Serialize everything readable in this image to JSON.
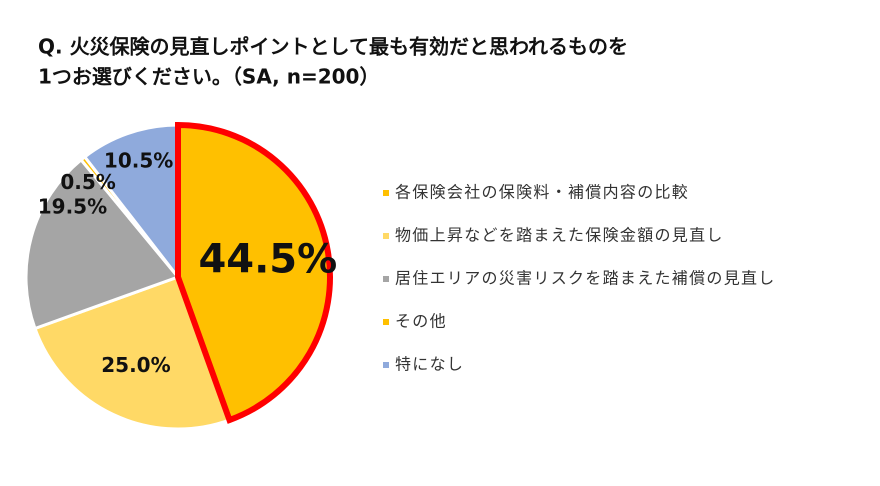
{
  "chart_data": {
    "type": "pie",
    "title": [
      "Q. 火災保険の見直しポイントとして最も有効だと思われるものを",
      "1つお選びください。（SA, n=200）"
    ],
    "categories": [
      "各保険会社の保険料・補償内容の比較",
      "物価上昇などを踏まえた保険金額の見直し",
      "居住エリアの災害リスクを踏まえた補償の見直し",
      "その他",
      "特になし"
    ],
    "values": [
      44.5,
      25.0,
      19.5,
      0.5,
      10.5
    ],
    "value_labels": [
      "44.5%",
      "25.0%",
      "19.5%",
      "0.5%",
      "10.5%"
    ],
    "colors": [
      "#ffc000",
      "#ffd966",
      "#a5a5a5",
      "#ffc000",
      "#8faadc"
    ],
    "highlight": 0,
    "highlight_color": "#ff0000",
    "legend": "right"
  }
}
